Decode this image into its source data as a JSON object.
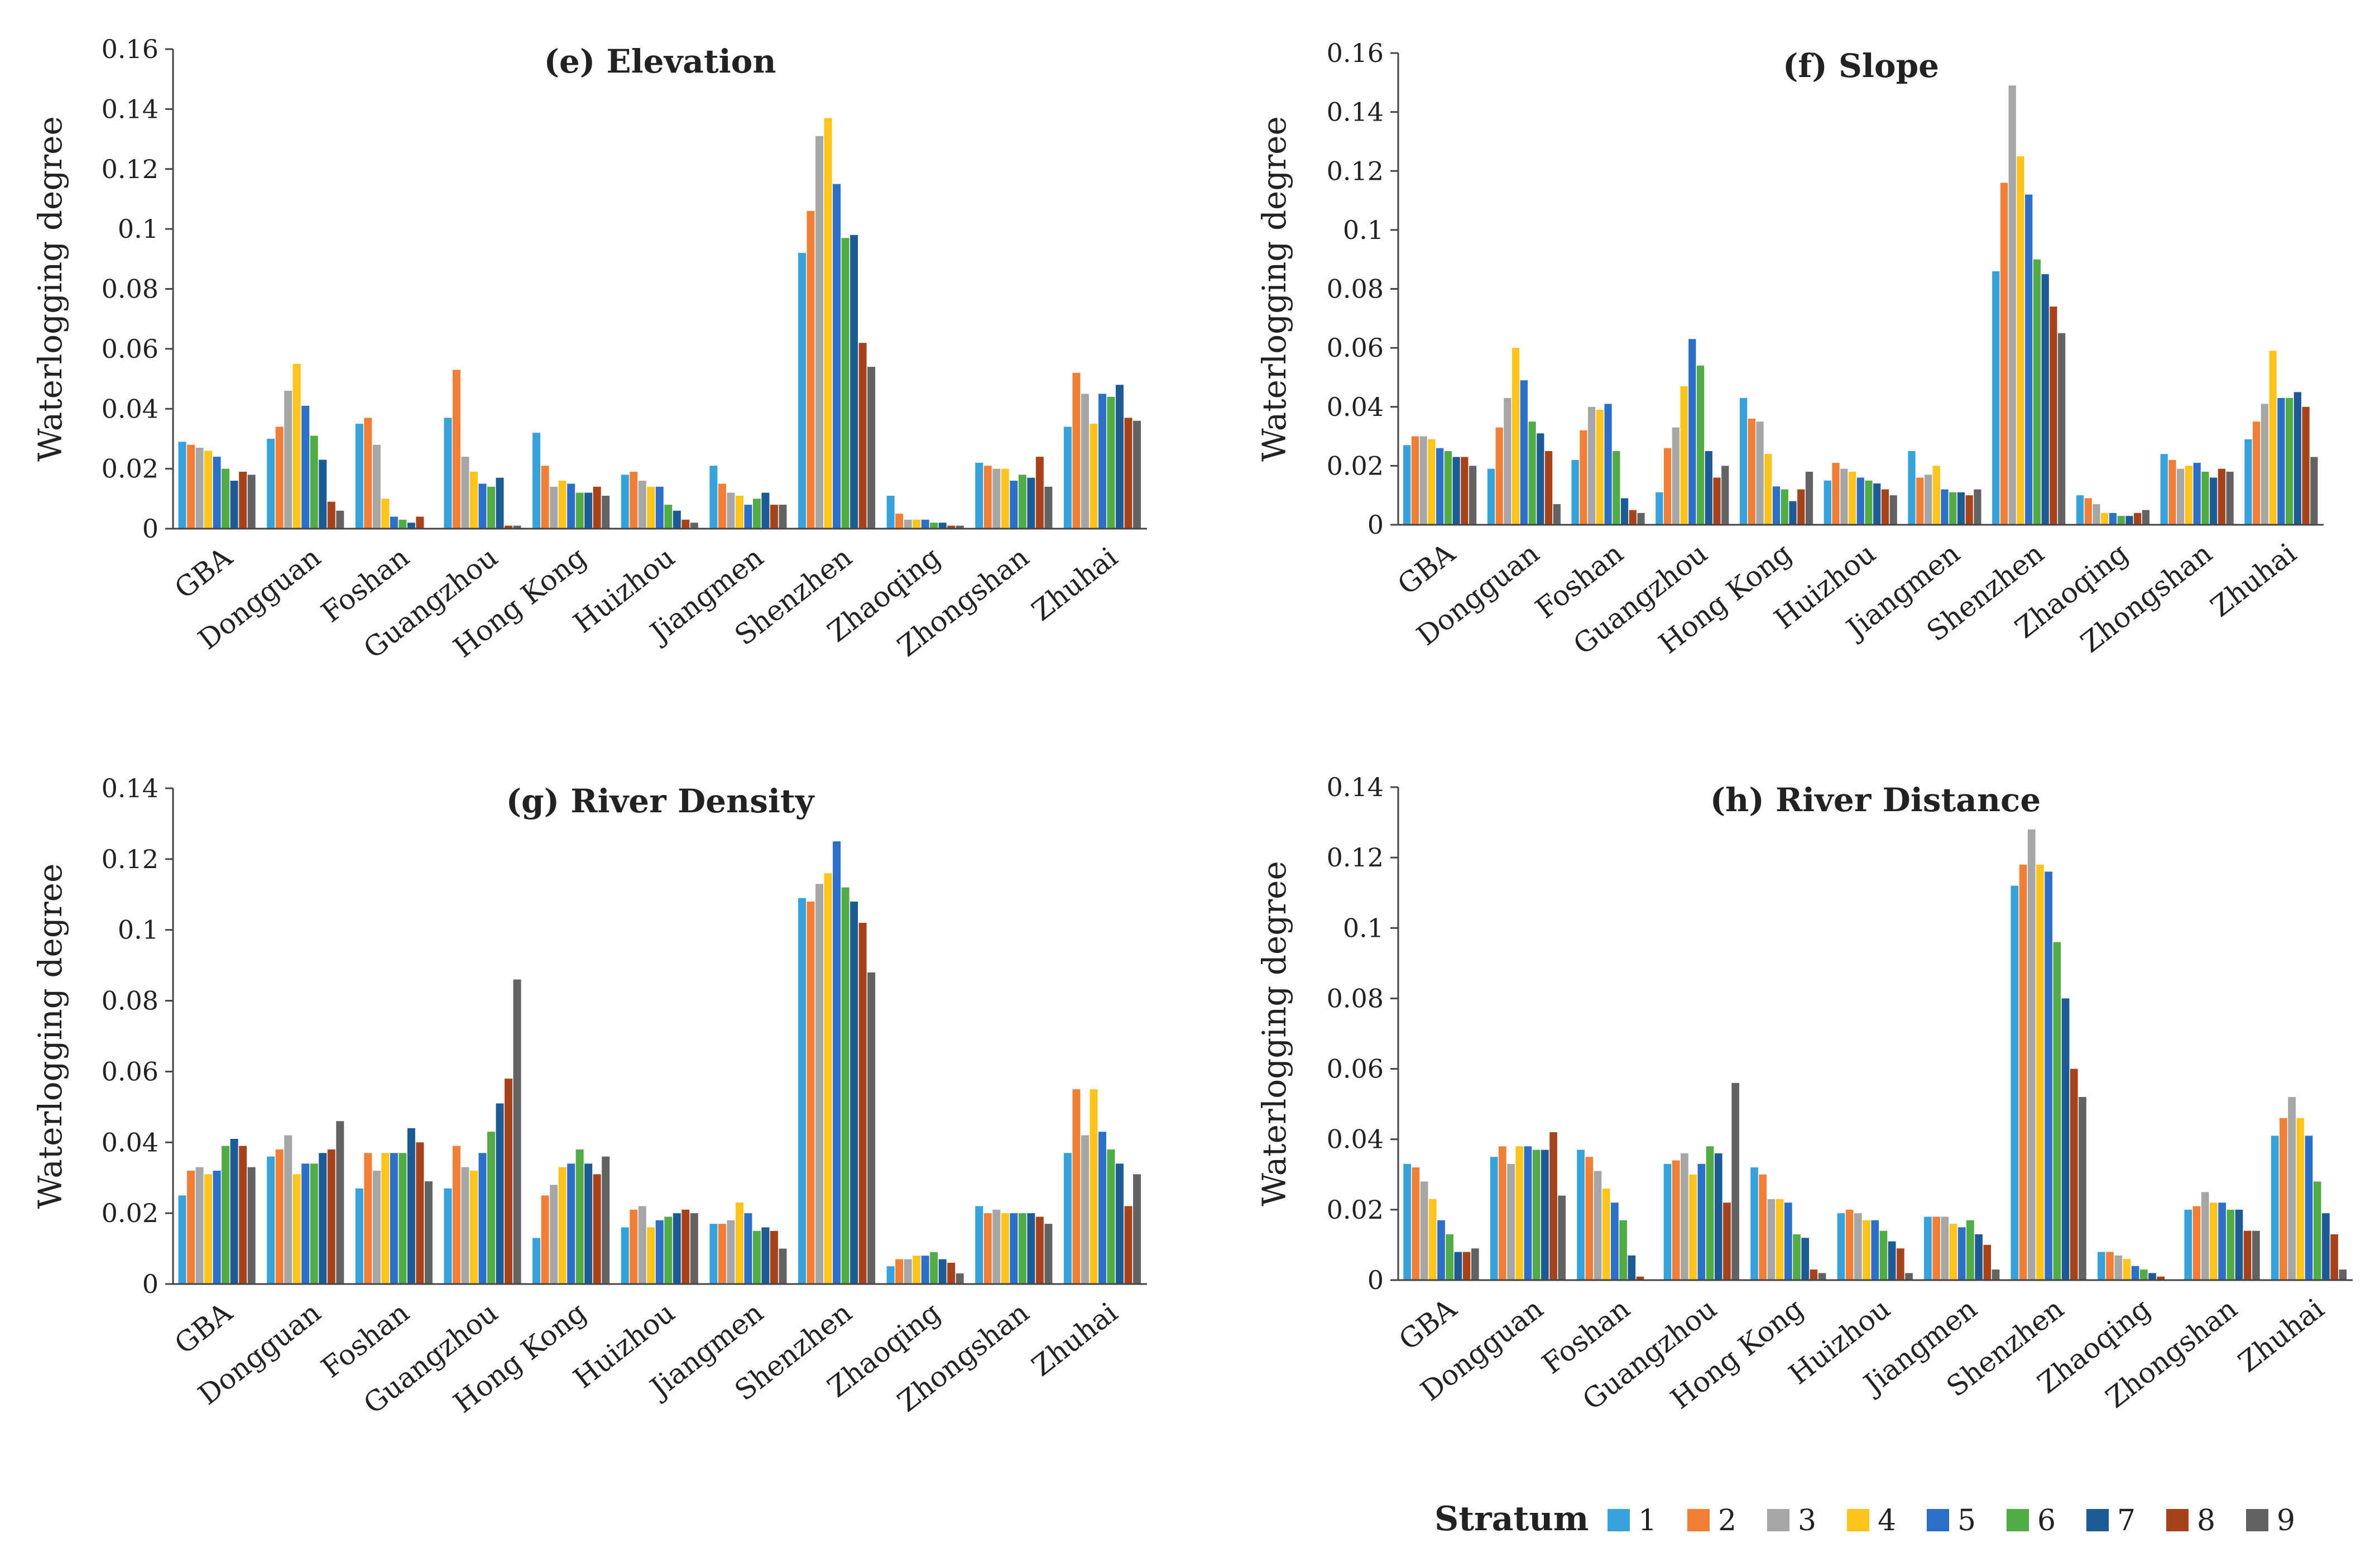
{
  "chart_data": [
    {
      "type": "bar",
      "title": "(e) Elevation",
      "xlabel": "",
      "ylabel": "Waterlogging degree",
      "ylim": [
        0,
        0.16
      ],
      "yticks": [
        "0",
        "0.02",
        "0.04",
        "0.06",
        "0.08",
        "0.1",
        "0.12",
        "0.14",
        "0.16"
      ],
      "categories": [
        "GBA",
        "Dongguan",
        "Foshan",
        "Guangzhou",
        "Hong Kong",
        "Huizhou",
        "Jiangmen",
        "Shenzhen",
        "Zhaoqing",
        "Zhongshan",
        "Zhuhai"
      ],
      "series": [
        {
          "name": "1",
          "values": [
            0.029,
            0.03,
            0.035,
            0.037,
            0.032,
            0.018,
            0.021,
            0.092,
            0.011,
            0.022,
            0.034
          ]
        },
        {
          "name": "2",
          "values": [
            0.028,
            0.034,
            0.037,
            0.053,
            0.021,
            0.019,
            0.015,
            0.106,
            0.005,
            0.021,
            0.052
          ]
        },
        {
          "name": "3",
          "values": [
            0.027,
            0.046,
            0.028,
            0.024,
            0.014,
            0.016,
            0.012,
            0.131,
            0.003,
            0.02,
            0.045
          ]
        },
        {
          "name": "4",
          "values": [
            0.026,
            0.055,
            0.01,
            0.019,
            0.016,
            0.014,
            0.011,
            0.137,
            0.003,
            0.02,
            0.035
          ]
        },
        {
          "name": "5",
          "values": [
            0.024,
            0.041,
            0.004,
            0.015,
            0.015,
            0.014,
            0.008,
            0.115,
            0.003,
            0.016,
            0.045
          ]
        },
        {
          "name": "6",
          "values": [
            0.02,
            0.031,
            0.003,
            0.014,
            0.012,
            0.008,
            0.01,
            0.097,
            0.002,
            0.018,
            0.044
          ]
        },
        {
          "name": "7",
          "values": [
            0.016,
            0.023,
            0.002,
            0.017,
            0.012,
            0.006,
            0.012,
            0.098,
            0.002,
            0.017,
            0.048
          ]
        },
        {
          "name": "8",
          "values": [
            0.019,
            0.009,
            0.004,
            0.001,
            0.014,
            0.003,
            0.008,
            0.062,
            0.001,
            0.024,
            0.037
          ]
        },
        {
          "name": "9",
          "values": [
            0.018,
            0.006,
            0.0,
            0.001,
            0.011,
            0.002,
            0.008,
            0.054,
            0.001,
            0.014,
            0.036
          ]
        }
      ]
    },
    {
      "type": "bar",
      "title": "(f) Slope",
      "xlabel": "",
      "ylabel": "Waterlogging degree",
      "ylim": [
        0,
        0.16
      ],
      "yticks": [
        "0",
        "0.02",
        "0.04",
        "0.06",
        "0.08",
        "0.1",
        "0.12",
        "0.14",
        "0.16"
      ],
      "categories": [
        "GBA",
        "Dongguan",
        "Foshan",
        "Guangzhou",
        "Hong Kong",
        "Huizhou",
        "Jiangmen",
        "Shenzhen",
        "Zhaoqing",
        "Zhongshan",
        "Zhuhai"
      ],
      "series": [
        {
          "name": "1",
          "values": [
            0.027,
            0.019,
            0.022,
            0.011,
            0.043,
            0.015,
            0.025,
            0.086,
            0.01,
            0.024,
            0.029
          ]
        },
        {
          "name": "2",
          "values": [
            0.03,
            0.033,
            0.032,
            0.026,
            0.036,
            0.021,
            0.016,
            0.116,
            0.009,
            0.022,
            0.035
          ]
        },
        {
          "name": "3",
          "values": [
            0.03,
            0.043,
            0.04,
            0.033,
            0.035,
            0.019,
            0.017,
            0.149,
            0.007,
            0.019,
            0.041
          ]
        },
        {
          "name": "4",
          "values": [
            0.029,
            0.06,
            0.039,
            0.047,
            0.024,
            0.018,
            0.02,
            0.125,
            0.004,
            0.02,
            0.059
          ]
        },
        {
          "name": "5",
          "values": [
            0.026,
            0.049,
            0.041,
            0.063,
            0.013,
            0.016,
            0.012,
            0.112,
            0.004,
            0.021,
            0.043
          ]
        },
        {
          "name": "6",
          "values": [
            0.025,
            0.035,
            0.025,
            0.054,
            0.012,
            0.015,
            0.011,
            0.09,
            0.003,
            0.018,
            0.043
          ]
        },
        {
          "name": "7",
          "values": [
            0.023,
            0.031,
            0.009,
            0.025,
            0.008,
            0.014,
            0.011,
            0.085,
            0.003,
            0.016,
            0.045
          ]
        },
        {
          "name": "8",
          "values": [
            0.023,
            0.025,
            0.005,
            0.016,
            0.012,
            0.012,
            0.01,
            0.074,
            0.004,
            0.019,
            0.04
          ]
        },
        {
          "name": "9",
          "values": [
            0.02,
            0.007,
            0.004,
            0.02,
            0.018,
            0.01,
            0.012,
            0.065,
            0.005,
            0.018,
            0.023
          ]
        }
      ]
    },
    {
      "type": "bar",
      "title": "(g) River Density",
      "xlabel": "",
      "ylabel": "Waterlogging degree",
      "ylim": [
        0,
        0.14
      ],
      "yticks": [
        "0",
        "0.02",
        "0.04",
        "0.06",
        "0.08",
        "0.1",
        "0.12",
        "0.14"
      ],
      "categories": [
        "GBA",
        "Dongguan",
        "Foshan",
        "Guangzhou",
        "Hong Kong",
        "Huizhou",
        "Jiangmen",
        "Shenzhen",
        "Zhaoqing",
        "Zhongshan",
        "Zhuhai"
      ],
      "series": [
        {
          "name": "1",
          "values": [
            0.025,
            0.036,
            0.027,
            0.027,
            0.013,
            0.016,
            0.017,
            0.109,
            0.005,
            0.022,
            0.037
          ]
        },
        {
          "name": "2",
          "values": [
            0.032,
            0.038,
            0.037,
            0.039,
            0.025,
            0.021,
            0.017,
            0.108,
            0.007,
            0.02,
            0.055
          ]
        },
        {
          "name": "3",
          "values": [
            0.033,
            0.042,
            0.032,
            0.033,
            0.028,
            0.022,
            0.018,
            0.113,
            0.007,
            0.021,
            0.042
          ]
        },
        {
          "name": "4",
          "values": [
            0.031,
            0.031,
            0.037,
            0.032,
            0.033,
            0.016,
            0.023,
            0.116,
            0.008,
            0.02,
            0.055
          ]
        },
        {
          "name": "5",
          "values": [
            0.032,
            0.034,
            0.037,
            0.037,
            0.034,
            0.018,
            0.02,
            0.125,
            0.008,
            0.02,
            0.043
          ]
        },
        {
          "name": "6",
          "values": [
            0.039,
            0.034,
            0.037,
            0.043,
            0.038,
            0.019,
            0.015,
            0.112,
            0.009,
            0.02,
            0.038
          ]
        },
        {
          "name": "7",
          "values": [
            0.041,
            0.037,
            0.044,
            0.051,
            0.034,
            0.02,
            0.016,
            0.108,
            0.007,
            0.02,
            0.034
          ]
        },
        {
          "name": "8",
          "values": [
            0.039,
            0.038,
            0.04,
            0.058,
            0.031,
            0.021,
            0.015,
            0.102,
            0.006,
            0.019,
            0.022
          ]
        },
        {
          "name": "9",
          "values": [
            0.033,
            0.046,
            0.029,
            0.086,
            0.036,
            0.02,
            0.01,
            0.088,
            0.003,
            0.017,
            0.031
          ]
        }
      ]
    },
    {
      "type": "bar",
      "title": "(h) River Distance",
      "xlabel": "",
      "ylabel": "Waterlogging degree",
      "ylim": [
        0,
        0.14
      ],
      "yticks": [
        "0",
        "0.02",
        "0.04",
        "0.06",
        "0.08",
        "0.1",
        "0.12",
        "0.14"
      ],
      "categories": [
        "GBA",
        "Dongguan",
        "Foshan",
        "Guangzhou",
        "Hong Kong",
        "Huizhou",
        "Jiangmen",
        "Shenzhen",
        "Zhaoqing",
        "Zhongshan",
        "Zhuhai"
      ],
      "series": [
        {
          "name": "1",
          "values": [
            0.033,
            0.035,
            0.037,
            0.033,
            0.032,
            0.019,
            0.018,
            0.112,
            0.008,
            0.02,
            0.041
          ]
        },
        {
          "name": "2",
          "values": [
            0.032,
            0.038,
            0.035,
            0.034,
            0.03,
            0.02,
            0.018,
            0.118,
            0.008,
            0.021,
            0.046
          ]
        },
        {
          "name": "3",
          "values": [
            0.028,
            0.033,
            0.031,
            0.036,
            0.023,
            0.019,
            0.018,
            0.128,
            0.007,
            0.025,
            0.052
          ]
        },
        {
          "name": "4",
          "values": [
            0.023,
            0.038,
            0.026,
            0.03,
            0.023,
            0.017,
            0.016,
            0.118,
            0.006,
            0.022,
            0.046
          ]
        },
        {
          "name": "5",
          "values": [
            0.017,
            0.038,
            0.022,
            0.033,
            0.022,
            0.017,
            0.015,
            0.116,
            0.004,
            0.022,
            0.041
          ]
        },
        {
          "name": "6",
          "values": [
            0.013,
            0.037,
            0.017,
            0.038,
            0.013,
            0.014,
            0.017,
            0.096,
            0.003,
            0.02,
            0.028
          ]
        },
        {
          "name": "7",
          "values": [
            0.008,
            0.037,
            0.007,
            0.036,
            0.012,
            0.011,
            0.013,
            0.08,
            0.002,
            0.02,
            0.019
          ]
        },
        {
          "name": "8",
          "values": [
            0.008,
            0.042,
            0.001,
            0.022,
            0.003,
            0.009,
            0.01,
            0.06,
            0.001,
            0.014,
            0.013
          ]
        },
        {
          "name": "9",
          "values": [
            0.009,
            0.024,
            0.0,
            0.056,
            0.002,
            0.002,
            0.003,
            0.052,
            0.0,
            0.014,
            0.003
          ]
        }
      ]
    }
  ],
  "legend": {
    "title": "Stratum",
    "labels": [
      "1",
      "2",
      "3",
      "4",
      "5",
      "6",
      "7",
      "8",
      "9"
    ],
    "colors": [
      "#35a2dc",
      "#f07f35",
      "#a6a6a6",
      "#ffc31c",
      "#2a6fc9",
      "#52ac45",
      "#1c5b95",
      "#a8421a",
      "#636363"
    ]
  }
}
